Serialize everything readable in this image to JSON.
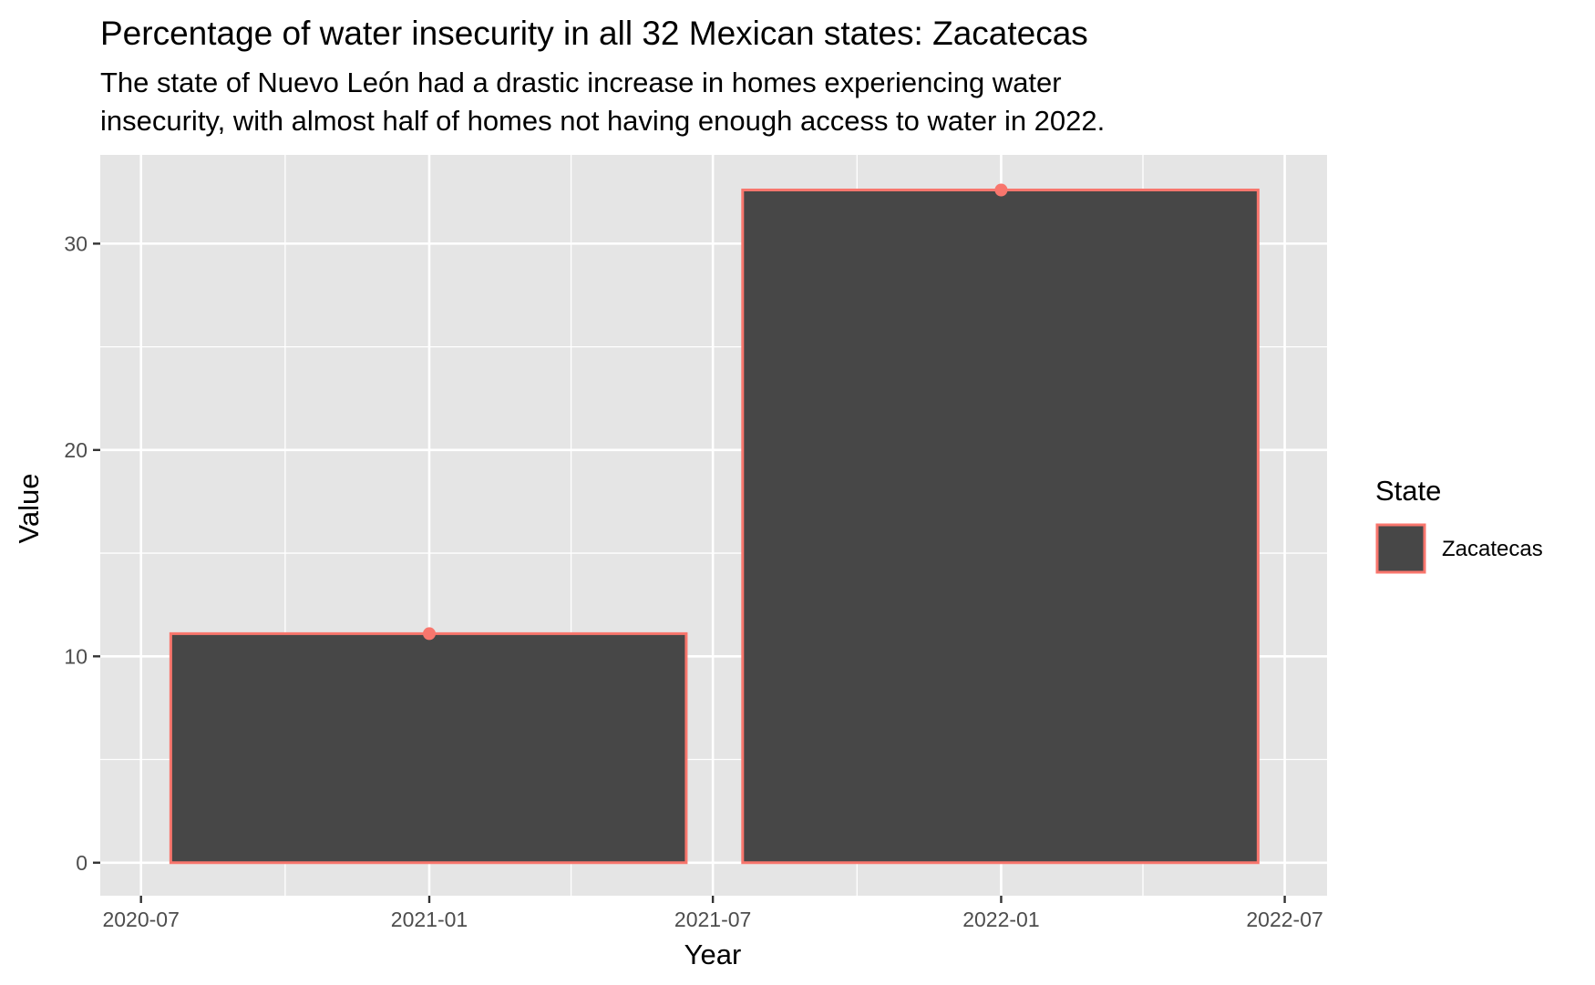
{
  "chart_data": {
    "type": "bar",
    "title": "Percentage of water insecurity in all 32 Mexican states: Zacatecas",
    "subtitle_lines": [
      "The state of Nuevo León had a drastic increase in homes experiencing water",
      "insecurity, with almost half of homes not having enough access to water in 2022."
    ],
    "xlabel": "Year",
    "ylabel": "Value",
    "x_ticks": [
      "2020-07",
      "2021-01",
      "2021-07",
      "2022-01",
      "2022-07"
    ],
    "y_ticks": [
      0,
      10,
      20,
      30
    ],
    "ylim": [
      -1.6,
      34.3
    ],
    "xlim": [
      "2020-06-05",
      "2022-07-28"
    ],
    "grid": true,
    "legend": {
      "title": "State",
      "position": "right",
      "entries": [
        "Zacatecas"
      ]
    },
    "series": [
      {
        "name": "Zacatecas",
        "categories": [
          "2021-01",
          "2022-01"
        ],
        "values": [
          11.1,
          32.6
        ],
        "fill_color": "#474747",
        "outline_color": "#f8766d"
      }
    ],
    "colors": {
      "panel_background": "#e5e5e5",
      "grid": "#ffffff",
      "bar_fill": "#474747",
      "series_color": "#f8766d"
    }
  }
}
